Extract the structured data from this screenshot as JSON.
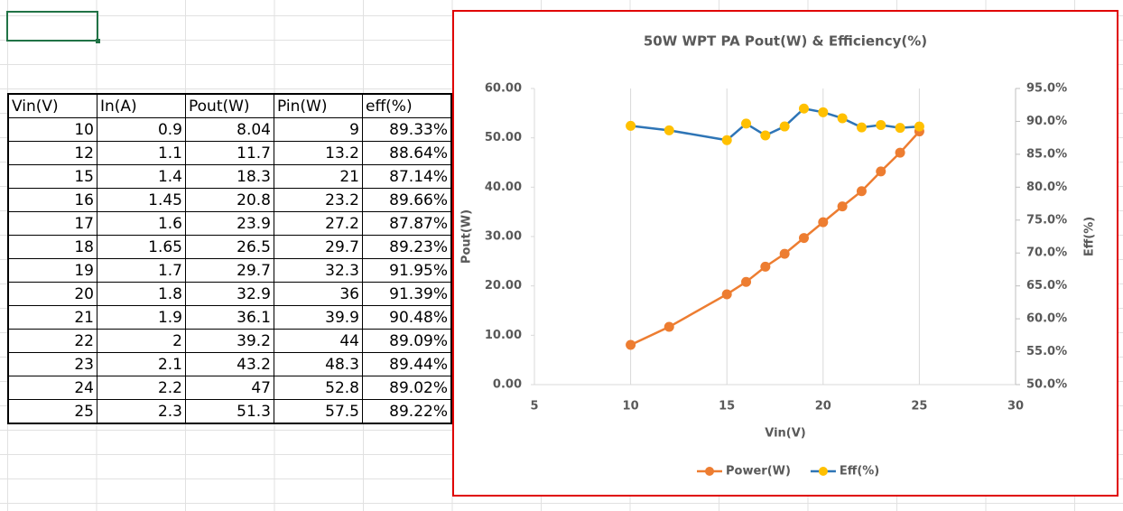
{
  "table": {
    "header": [
      "Vin(V)",
      "In(A)",
      "Pout(W)",
      "Pin(W)",
      "eff(%)"
    ],
    "rows": [
      [
        "10",
        "0.9",
        "8.04",
        "9",
        "89.33%"
      ],
      [
        "12",
        "1.1",
        "11.7",
        "13.2",
        "88.64%"
      ],
      [
        "15",
        "1.4",
        "18.3",
        "21",
        "87.14%"
      ],
      [
        "16",
        "1.45",
        "20.8",
        "23.2",
        "89.66%"
      ],
      [
        "17",
        "1.6",
        "23.9",
        "27.2",
        "87.87%"
      ],
      [
        "18",
        "1.65",
        "26.5",
        "29.7",
        "89.23%"
      ],
      [
        "19",
        "1.7",
        "29.7",
        "32.3",
        "91.95%"
      ],
      [
        "20",
        "1.8",
        "32.9",
        "36",
        "91.39%"
      ],
      [
        "21",
        "1.9",
        "36.1",
        "39.9",
        "90.48%"
      ],
      [
        "22",
        "2",
        "39.2",
        "44",
        "89.09%"
      ],
      [
        "23",
        "2.1",
        "43.2",
        "48.3",
        "89.44%"
      ],
      [
        "24",
        "2.2",
        "47",
        "52.8",
        "89.02%"
      ],
      [
        "25",
        "2.3",
        "51.3",
        "57.5",
        "89.22%"
      ]
    ]
  },
  "chart_data": {
    "type": "line",
    "title": "50W WPT PA Pout(W) & Efficiency(%)",
    "x_label": "Vin(V)",
    "y_label": "Pout(W)",
    "y2_label": "Eff(%)",
    "x": [
      10,
      12,
      15,
      16,
      17,
      18,
      19,
      20,
      21,
      22,
      23,
      24,
      25
    ],
    "series": [
      {
        "name": "Power(W)",
        "color": "#ed7d31",
        "marker_color": "#ed7d31",
        "values": [
          8.04,
          11.7,
          18.3,
          20.8,
          23.9,
          26.5,
          29.7,
          32.9,
          36.1,
          39.2,
          43.2,
          47,
          51.3
        ]
      },
      {
        "name": "Eff(%)",
        "color": "#2e75b6",
        "marker_color": "#ffc000",
        "axis": "y2",
        "values": [
          89.33,
          88.64,
          87.14,
          89.66,
          87.87,
          89.23,
          91.95,
          91.39,
          90.48,
          89.09,
          89.44,
          89.02,
          89.22
        ]
      }
    ],
    "xlim": [
      5,
      30
    ],
    "xticks": [
      5,
      10,
      15,
      20,
      25,
      30
    ],
    "ylim": [
      0,
      60
    ],
    "yticks": [
      {
        "value": 0,
        "label": "0.00"
      },
      {
        "value": 10,
        "label": "10.00"
      },
      {
        "value": 20,
        "label": "20.00"
      },
      {
        "value": 30,
        "label": "30.00"
      },
      {
        "value": 40,
        "label": "40.00"
      },
      {
        "value": 50,
        "label": "50.00"
      },
      {
        "value": 60,
        "label": "60.00"
      }
    ],
    "y2lim": [
      50,
      95
    ],
    "y2ticks": [
      {
        "value": 50,
        "label": "50.0%"
      },
      {
        "value": 55,
        "label": "55.0%"
      },
      {
        "value": 60,
        "label": "60.0%"
      },
      {
        "value": 65,
        "label": "65.0%"
      },
      {
        "value": 70,
        "label": "70.0%"
      },
      {
        "value": 75,
        "label": "75.0%"
      },
      {
        "value": 80,
        "label": "80.0%"
      },
      {
        "value": 85,
        "label": "85.0%"
      },
      {
        "value": 90,
        "label": "90.0%"
      },
      {
        "value": 95,
        "label": "95.0%"
      }
    ],
    "grid": "x",
    "legend": "bottom"
  }
}
